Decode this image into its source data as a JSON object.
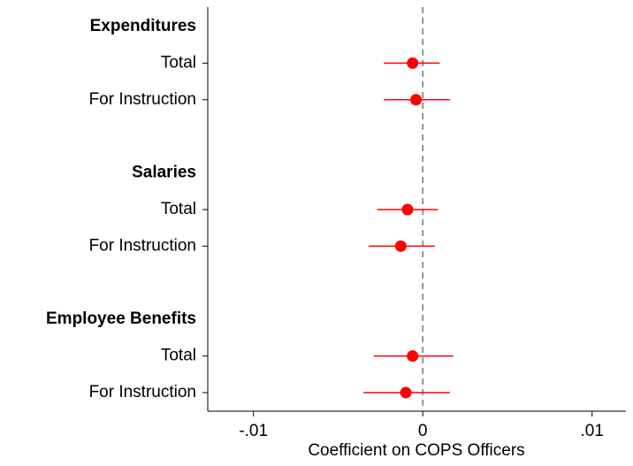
{
  "chart_data": {
    "type": "coefplot",
    "x_label": "Coefficient on COPS Officers",
    "color": "#ff0000",
    "xlim": [
      -0.0127,
      0.012
    ],
    "xticks": [
      {
        "value": -0.01,
        "label": "-.01"
      },
      0,
      {
        "value": 0.01,
        "label": ".01"
      }
    ],
    "reference_line": 0,
    "groups": [
      {
        "name": "Expenditures",
        "categories": [
          "Total",
          "For Instruction"
        ],
        "values": [
          -0.0006,
          -0.0004
        ],
        "lower": [
          -0.0023,
          -0.0023
        ],
        "upper": [
          0.001,
          0.0016
        ]
      },
      {
        "name": "Salaries",
        "categories": [
          "Total",
          "For Instruction"
        ],
        "values": [
          -0.0009,
          -0.0013
        ],
        "lower": [
          -0.0027,
          -0.0032
        ],
        "upper": [
          0.0009,
          0.0007
        ]
      },
      {
        "name": "Employee Benefits",
        "categories": [
          "Total",
          "For Instruction"
        ],
        "values": [
          -0.0006,
          -0.001
        ],
        "lower": [
          -0.0029,
          -0.0035
        ],
        "upper": [
          0.0018,
          0.0016
        ]
      }
    ]
  }
}
